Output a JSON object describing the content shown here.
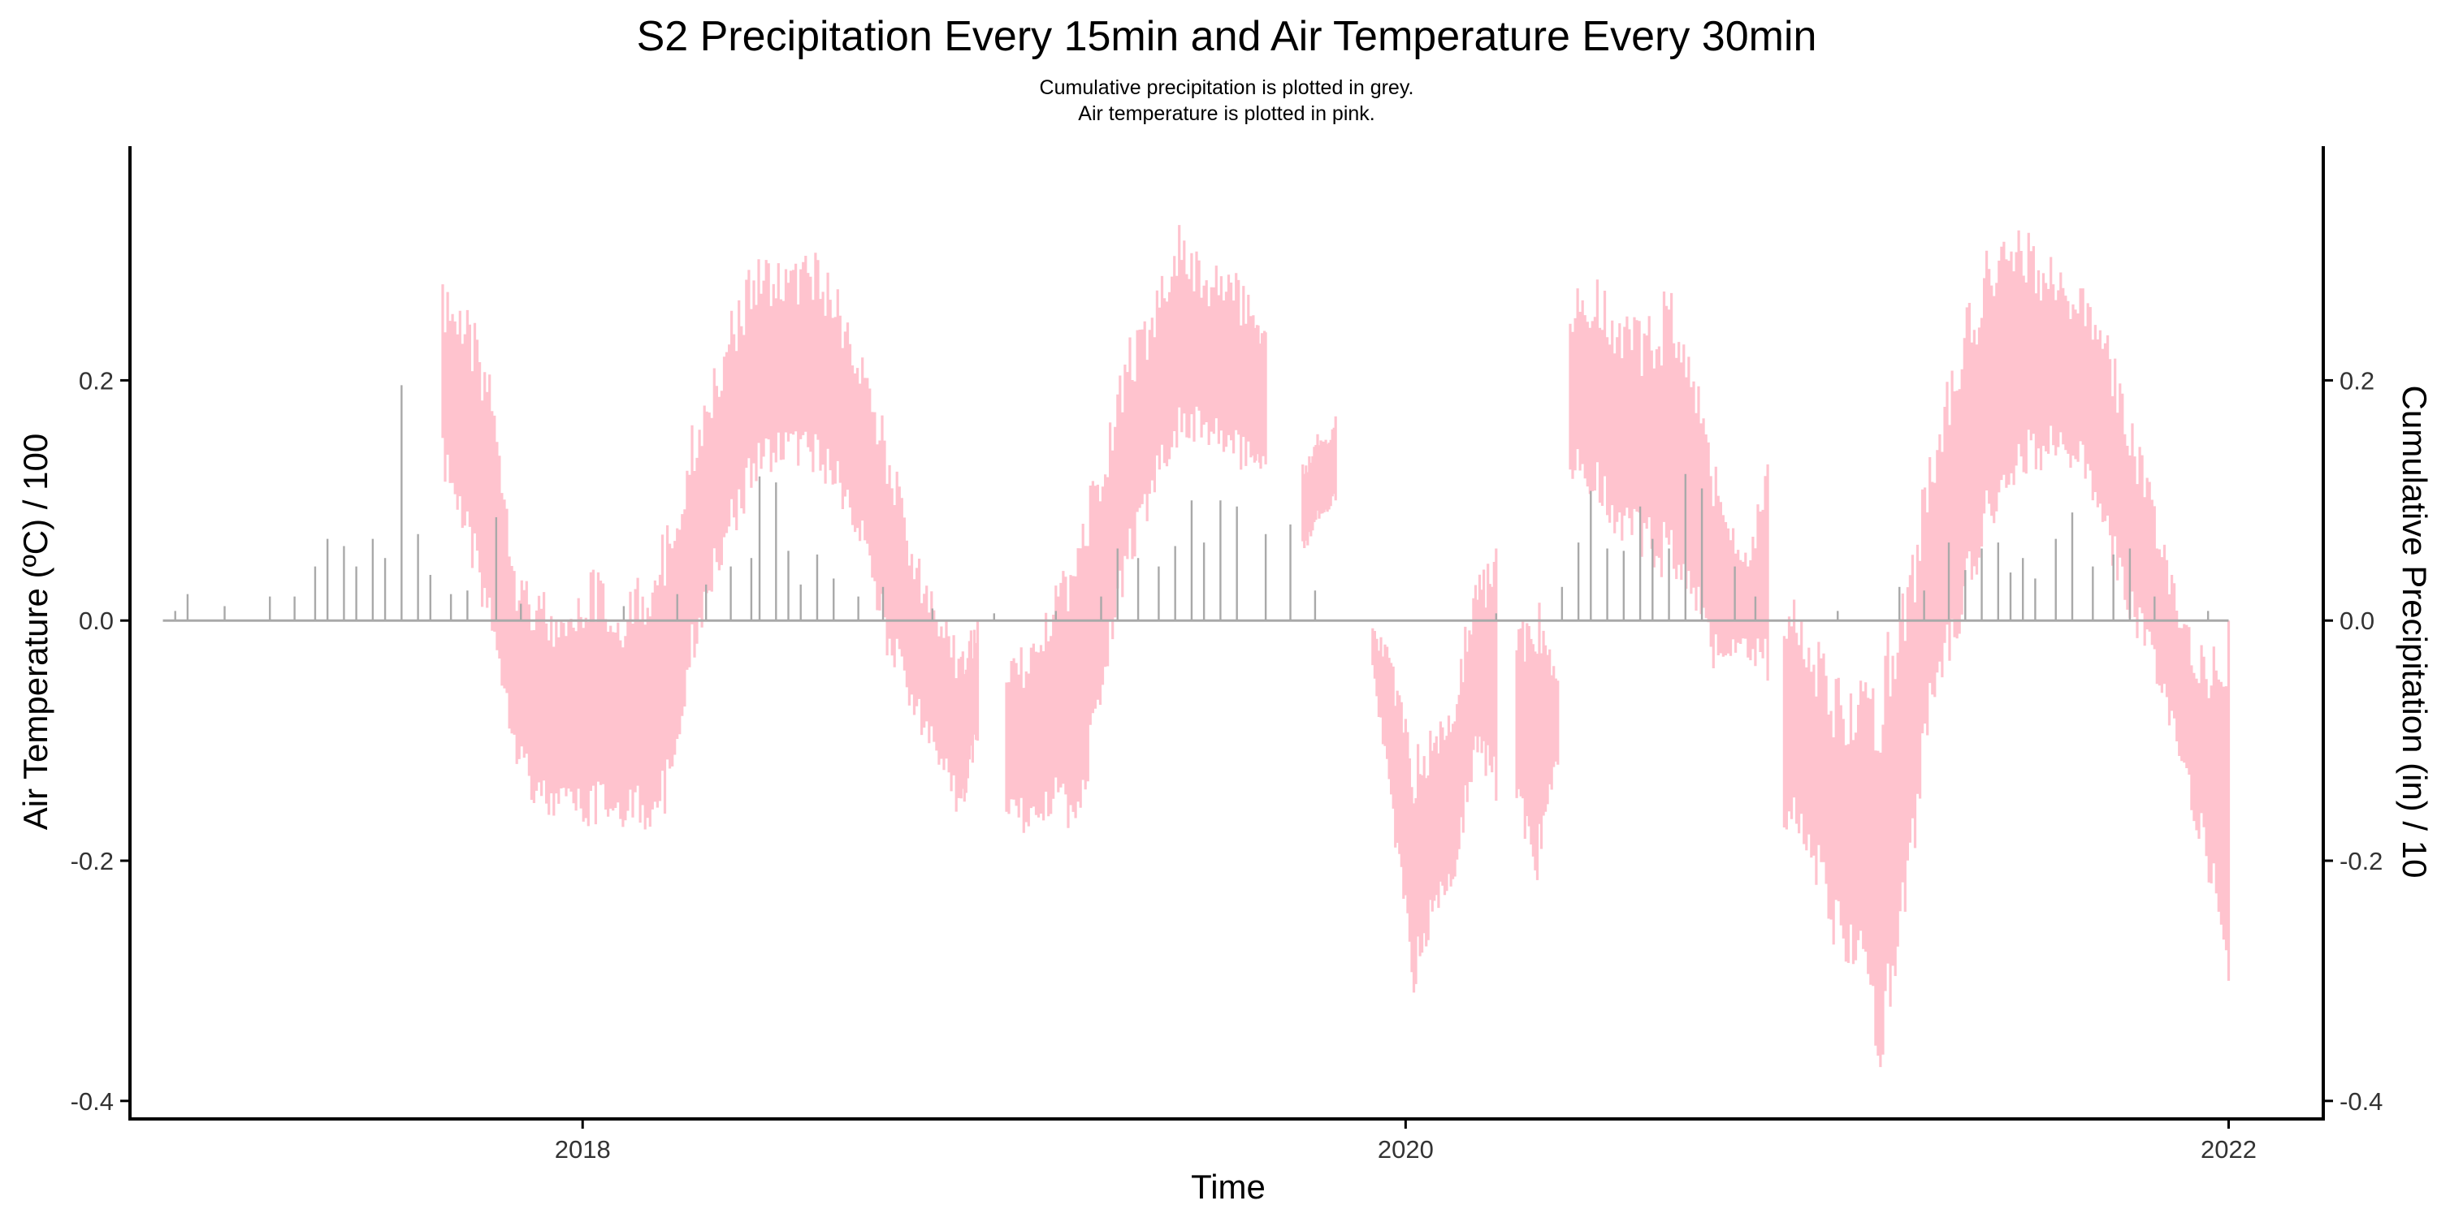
{
  "chart_data": {
    "type": "line",
    "title": "S2 Precipitation Every 15min and Air Temperature Every 30min",
    "subtitle_lines": [
      "Cumulative precipitation is plotted in grey.",
      "Air temperature is plotted in pink."
    ],
    "xlabel": "Time",
    "ylabel": "Air Temperature (ºC) / 100",
    "y2label": "Cumulative Precipitation (in) / 10",
    "xlim": [
      2016.9,
      2022.23
    ],
    "ylim": [
      -0.415,
      0.395
    ],
    "x_ticks": [
      2018,
      2020,
      2022
    ],
    "x_tick_labels": [
      "2018",
      "2020",
      "2022"
    ],
    "y_ticks": [
      -0.4,
      -0.2,
      0.0,
      0.2
    ],
    "y_tick_labels": [
      "-0.4",
      "-0.2",
      "0.0",
      "0.2"
    ],
    "y2_ticks": [
      -0.4,
      -0.2,
      0.0,
      0.2
    ],
    "y2_tick_labels": [
      "-0.4",
      "-0.2",
      "0.0",
      "0.2"
    ],
    "grid": false,
    "legend": "none",
    "colors": {
      "temperature": "#ffc0cb",
      "precipitation": "#a9a9a9",
      "axis": "#000000"
    },
    "series": [
      {
        "role": "temperature",
        "style": "band",
        "segments": [
          {
            "x": [
              2017.66,
              2017.72,
              2017.78,
              2017.84,
              2017.9,
              2017.96,
              2018.02,
              2018.08,
              2018.14,
              2018.2,
              2018.26,
              2018.32,
              2018.38,
              2018.44,
              2018.5,
              2018.56,
              2018.62,
              2018.68,
              2018.74,
              2018.8,
              2018.86,
              2018.92,
              2018.96
            ],
            "lo": [
              0.12,
              0.05,
              -0.02,
              -0.12,
              -0.17,
              -0.17,
              -0.18,
              -0.17,
              -0.18,
              -0.17,
              -0.05,
              0.03,
              0.08,
              0.12,
              0.13,
              0.12,
              0.1,
              0.05,
              -0.03,
              -0.08,
              -0.12,
              -0.17,
              -0.1
            ],
            "hi": [
              0.28,
              0.26,
              0.22,
              0.05,
              0.03,
              0.0,
              0.05,
              0.02,
              0.04,
              0.08,
              0.16,
              0.22,
              0.28,
              0.31,
              0.3,
              0.31,
              0.28,
              0.22,
              0.16,
              0.07,
              0.02,
              -0.02,
              0.0
            ]
          },
          {
            "x": [
              2019.03,
              2019.09,
              2019.15,
              2019.21,
              2019.27,
              2019.33,
              2019.39,
              2019.45,
              2019.51,
              2019.57,
              2019.63,
              2019.66
            ],
            "lo": [
              -0.17,
              -0.18,
              -0.17,
              -0.18,
              -0.05,
              0.04,
              0.1,
              0.14,
              0.15,
              0.13,
              0.12,
              0.13
            ],
            "hi": [
              -0.03,
              -0.01,
              0.03,
              0.1,
              0.16,
              0.24,
              0.27,
              0.33,
              0.3,
              0.3,
              0.27,
              0.24
            ]
          },
          {
            "x": [
              2019.75,
              2019.79,
              2019.83
            ],
            "lo": [
              0.05,
              0.08,
              0.1
            ],
            "hi": [
              0.13,
              0.16,
              0.17
            ]
          },
          {
            "x": [
              2019.92,
              2019.97,
              2020.02,
              2020.07,
              2020.12,
              2020.17,
              2020.22
            ],
            "lo": [
              -0.04,
              -0.18,
              -0.31,
              -0.25,
              -0.22,
              -0.12,
              -0.15
            ],
            "hi": [
              0.0,
              -0.03,
              -0.1,
              -0.08,
              -0.05,
              0.04,
              0.06
            ]
          },
          {
            "x": [
              2020.27,
              2020.32,
              2020.37
            ],
            "lo": [
              -0.16,
              -0.22,
              -0.12
            ],
            "hi": [
              0.0,
              0.03,
              -0.05
            ]
          },
          {
            "x": [
              2020.4,
              2020.46,
              2020.52,
              2020.58,
              2020.64,
              2020.7,
              2020.76,
              2020.82,
              2020.88
            ],
            "lo": [
              0.12,
              0.1,
              0.06,
              0.05,
              0.03,
              0.0,
              -0.05,
              -0.03,
              -0.05
            ],
            "hi": [
              0.28,
              0.29,
              0.26,
              0.25,
              0.28,
              0.22,
              0.12,
              0.05,
              0.13
            ]
          },
          {
            "x": [
              2020.92,
              2020.98,
              2021.04,
              2021.1,
              2021.16,
              2021.22,
              2021.28,
              2021.34,
              2021.4,
              2021.46,
              2021.52,
              2021.58,
              2021.64,
              2021.7,
              2021.76,
              2021.82,
              2021.88,
              2021.94,
              2022.0
            ],
            "lo": [
              -0.18,
              -0.2,
              -0.27,
              -0.3,
              -0.38,
              -0.24,
              -0.08,
              -0.03,
              0.05,
              0.1,
              0.12,
              0.13,
              0.12,
              0.06,
              0.0,
              -0.05,
              -0.12,
              -0.2,
              -0.3
            ],
            "hi": [
              0.03,
              0.0,
              -0.04,
              -0.05,
              -0.02,
              0.05,
              0.15,
              0.24,
              0.3,
              0.35,
              0.32,
              0.3,
              0.28,
              0.25,
              0.18,
              0.1,
              0.02,
              -0.02,
              0.0
            ]
          }
        ]
      },
      {
        "role": "precipitation",
        "style": "spikes",
        "x": [
          2017.01,
          2017.04,
          2017.13,
          2017.24,
          2017.3,
          2017.35,
          2017.38,
          2017.42,
          2017.45,
          2017.49,
          2017.52,
          2017.56,
          2017.6,
          2017.63,
          2017.68,
          2017.72,
          2017.79,
          2017.85,
          2018.1,
          2018.23,
          2018.3,
          2018.36,
          2018.41,
          2018.43,
          2018.47,
          2018.5,
          2018.53,
          2018.57,
          2018.61,
          2018.67,
          2018.73,
          2018.85,
          2019.0,
          2019.15,
          2019.26,
          2019.3,
          2019.35,
          2019.4,
          2019.44,
          2019.48,
          2019.51,
          2019.55,
          2019.59,
          2019.66,
          2019.72,
          2019.78,
          2020.22,
          2020.38,
          2020.42,
          2020.45,
          2020.49,
          2020.53,
          2020.57,
          2020.6,
          2020.64,
          2020.68,
          2020.72,
          2020.8,
          2020.85,
          2021.05,
          2021.2,
          2021.26,
          2021.32,
          2021.36,
          2021.4,
          2021.44,
          2021.47,
          2021.5,
          2021.53,
          2021.58,
          2021.62,
          2021.67,
          2021.72,
          2021.76,
          2021.82,
          2021.95
        ],
        "values": [
          0.008,
          0.022,
          0.012,
          0.02,
          0.02,
          0.045,
          0.068,
          0.062,
          0.045,
          0.068,
          0.052,
          0.196,
          0.072,
          0.038,
          0.022,
          0.025,
          0.086,
          0.014,
          0.012,
          0.022,
          0.03,
          0.045,
          0.052,
          0.12,
          0.115,
          0.058,
          0.03,
          0.055,
          0.035,
          0.02,
          0.028,
          0.01,
          0.006,
          0.008,
          0.02,
          0.06,
          0.052,
          0.045,
          0.062,
          0.1,
          0.065,
          0.1,
          0.095,
          0.072,
          0.08,
          0.025,
          0.006,
          0.028,
          0.065,
          0.108,
          0.06,
          0.058,
          0.095,
          0.068,
          0.06,
          0.122,
          0.11,
          0.045,
          0.02,
          0.008,
          0.028,
          0.025,
          0.065,
          0.042,
          0.06,
          0.065,
          0.04,
          0.052,
          0.035,
          0.068,
          0.09,
          0.045,
          0.055,
          0.06,
          0.02,
          0.008
        ],
        "baseline_x": [
          2016.98,
          2022.0
        ],
        "baseline_y": 0.0
      }
    ]
  }
}
